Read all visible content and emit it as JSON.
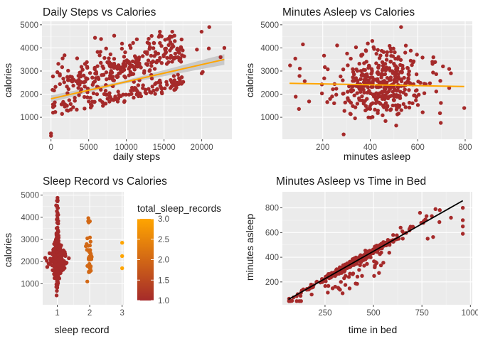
{
  "colors": {
    "point": "#A52A2A",
    "smooth": "#FFA500",
    "band": "#BEBEBE",
    "panel": "#EBEBEB",
    "grid_major": "#FFFFFF",
    "diag_line": "#000000",
    "gradient_low": "#A52A2A",
    "gradient_high": "#FFA500"
  },
  "chart_data": [
    {
      "type": "scatter",
      "title": "Daily Steps vs Calories",
      "xlabel": "daily steps",
      "ylabel": "calories",
      "xlim": [
        -1200,
        24000
      ],
      "ylim": [
        50,
        5150
      ],
      "xticks": [
        0,
        5000,
        10000,
        15000,
        20000
      ],
      "yticks": [
        1000,
        2000,
        3000,
        4000,
        5000
      ],
      "smooth": {
        "method": "lm",
        "x": [
          0,
          23000
        ],
        "y": [
          1800,
          3500
        ],
        "band_halfwidth_ends": [
          150,
          230
        ],
        "band_halfwidth_mid": 60
      },
      "points": {
        "generator": "linear-scatter-with-noise",
        "n": 420,
        "notable": [
          [
            0,
            200
          ],
          [
            0,
            300
          ],
          [
            21000,
            4900
          ],
          [
            22500,
            3600
          ],
          [
            23000,
            4000
          ],
          [
            20000,
            2900
          ],
          [
            15800,
            4500
          ],
          [
            16000,
            4000
          ]
        ]
      }
    },
    {
      "type": "scatter",
      "title": "Minutes Asleep vs Calories",
      "xlabel": "minutes asleep",
      "ylabel": "calories",
      "xlim": [
        30,
        830
      ],
      "ylim": [
        50,
        5150
      ],
      "xticks": [
        200,
        400,
        600,
        800
      ],
      "yticks": [
        1000,
        2000,
        3000,
        4000,
        5000
      ],
      "smooth": {
        "method": "lm",
        "x": [
          60,
          796
        ],
        "y": [
          2470,
          2330
        ]
      },
      "points": {
        "generator": "cloud-around-350-550",
        "n": 410,
        "notable": [
          [
            288,
            260
          ],
          [
            796,
            1400
          ],
          [
            740,
            2900
          ],
          [
            530,
            4900
          ],
          [
            550,
            4100
          ]
        ]
      }
    },
    {
      "type": "scatter",
      "title": "Sleep Record vs Calories",
      "xlabel": "sleep record",
      "ylabel": "calories",
      "xlim": [
        0.55,
        3.05
      ],
      "ylim": [
        50,
        5150
      ],
      "xticks": [
        1,
        2,
        3
      ],
      "yticks": [
        1000,
        2000,
        3000,
        4000,
        5000
      ],
      "legend": {
        "title": "total_sleep_records",
        "range": [
          1.0,
          3.0
        ],
        "ticks": [
          1.0,
          1.5,
          2.0,
          2.5,
          3.0
        ]
      },
      "groups": [
        {
          "x": 1,
          "color_value": 1.0,
          "n": 360
        },
        {
          "x": 2,
          "color_value": 2.0,
          "n": 45
        },
        {
          "x": 3,
          "color_value": 3.0,
          "points": [
            2850,
            2250,
            1700
          ]
        }
      ]
    },
    {
      "type": "scatter",
      "title": "Minutes Asleep vs Time in Bed",
      "xlabel": "time in bed",
      "ylabel": "minutes asleep",
      "xlim": [
        30,
        1010
      ],
      "ylim": [
        15,
        930
      ],
      "xticks": [
        250,
        500,
        750,
        1000
      ],
      "yticks": [
        200,
        400,
        600,
        800
      ],
      "line": {
        "x": [
          61,
          961
        ],
        "y": [
          58,
          858
        ]
      },
      "points": {
        "generator": "near-diagonal",
        "n": 400,
        "notable": [
          [
            961,
            800
          ],
          [
            961,
            700
          ],
          [
            961,
            650
          ],
          [
            961,
            590
          ],
          [
            900,
            720
          ],
          [
            740,
            760
          ],
          [
            640,
            640
          ],
          [
            820,
            790
          ],
          [
            130,
            130
          ]
        ]
      }
    }
  ]
}
